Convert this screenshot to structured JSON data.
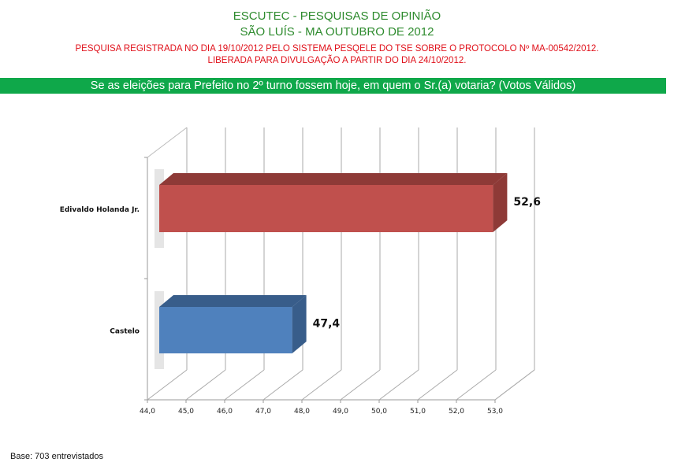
{
  "header": {
    "title": "ESCUTEC - PESQUISAS DE OPINIÃO",
    "subtitle": "SÃO LUÍS - MA OUTUBRO DE 2012",
    "registration": "PESQUISA REGISTRADA NO DIA 19/10/2012 PELO SISTEMA PESQELE DO TSE SOBRE O PROTOCOLO Nº MA-00542/2012.",
    "release": "LIBERADA PARA DIVULGAÇÃO A PARTIR DO DIA 24/10/2012."
  },
  "question": "Se as eleições para Prefeito no 2º turno fossem hoje, em quem o Sr.(a) votaria? (Votos Válidos)",
  "footer": {
    "base": "Base: 703 entrevistados"
  },
  "chart_data": {
    "type": "bar",
    "orientation": "horizontal-3d",
    "categories": [
      "Edivaldo Holanda Jr.",
      "Castelo"
    ],
    "values": [
      52.6,
      47.4
    ],
    "value_labels": [
      "52,6",
      "47,4"
    ],
    "colors": [
      "#c0504d",
      "#4f81bd"
    ],
    "xlim": [
      44,
      53
    ],
    "xticks": [
      "44,0",
      "45,0",
      "46,0",
      "47,0",
      "48,0",
      "49,0",
      "50,0",
      "51,0",
      "52,0",
      "53,0"
    ],
    "grid": true
  }
}
